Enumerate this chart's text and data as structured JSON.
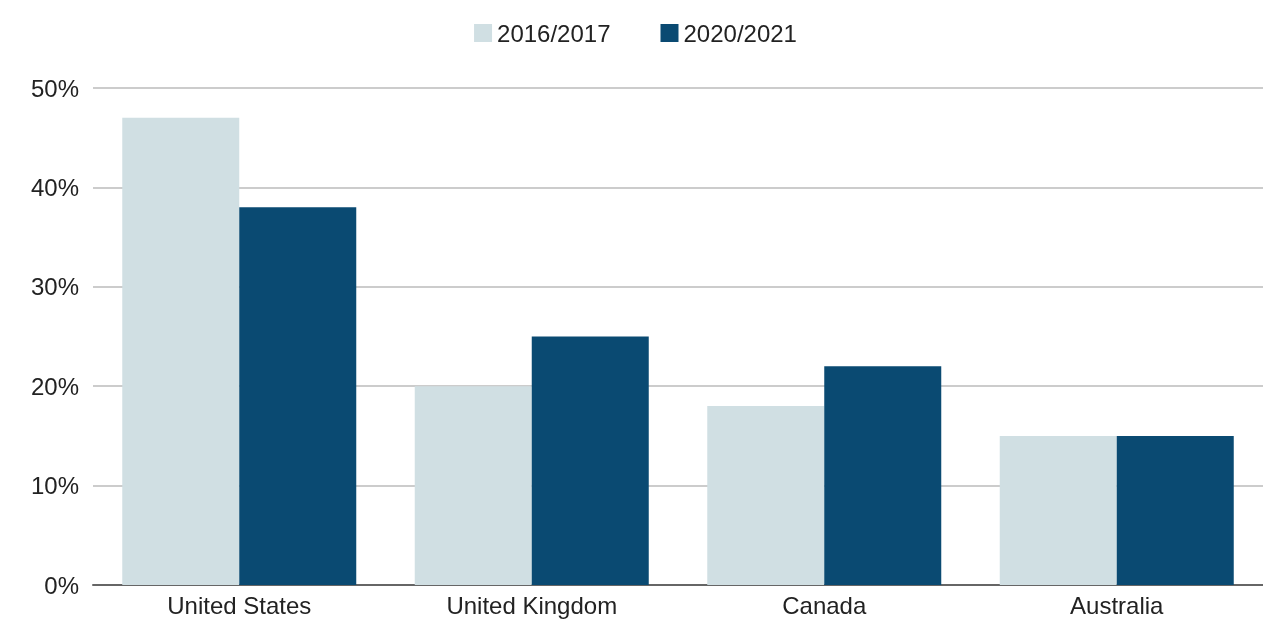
{
  "chart_data": {
    "type": "bar",
    "categories": [
      "United States",
      "United Kingdom",
      "Canada",
      "Australia"
    ],
    "series": [
      {
        "name": "2016/2017",
        "color": "#d0dfe3",
        "values": [
          47,
          20,
          18,
          15
        ]
      },
      {
        "name": "2020/2021",
        "color": "#0a4a72",
        "values": [
          38,
          25,
          22,
          15
        ]
      }
    ],
    "ylim": [
      0,
      50
    ],
    "yticks": [
      {
        "value": 0,
        "label": "0%"
      },
      {
        "value": 10,
        "label": "10%"
      },
      {
        "value": 20,
        "label": "20%"
      },
      {
        "value": 30,
        "label": "30%"
      },
      {
        "value": 40,
        "label": "40%"
      },
      {
        "value": 50,
        "label": "50%"
      }
    ],
    "grid": "y",
    "legend": "top"
  }
}
